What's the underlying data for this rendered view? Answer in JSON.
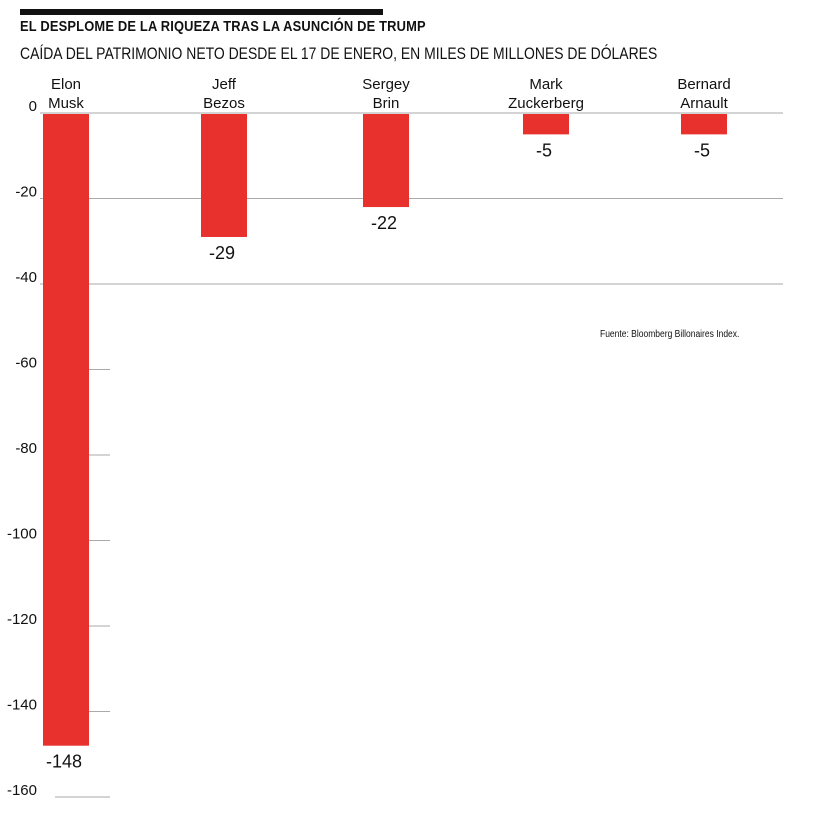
{
  "chart_data": {
    "type": "bar",
    "title": "EL DESPLOME DE LA RIQUEZA TRAS LA ASUNCIÓN DE TRUMP",
    "subtitle": "CAÍDA DEL PATRIMONIO NETO DESDE EL 17 DE ENERO, EN MILES DE MILLONES DE DÓLARES",
    "categories": [
      [
        "Elon",
        "Musk"
      ],
      [
        "Jeff",
        "Bezos"
      ],
      [
        "Sergey",
        "Brin"
      ],
      [
        "Mark",
        "Zuckerberg"
      ],
      [
        "Bernard",
        "Arnault"
      ]
    ],
    "values": [
      -148,
      -29,
      -22,
      -5,
      -5
    ],
    "value_labels": [
      "-148",
      "-29",
      "-22",
      "-5",
      "-5"
    ],
    "yticks": [
      0,
      -20,
      -40,
      -60,
      -80,
      -100,
      -120,
      -140,
      -160
    ],
    "ytick_labels": [
      "0",
      "-20",
      "-40",
      "-60",
      "-80",
      "-100",
      "-120",
      "-140",
      "-160"
    ],
    "ylim": [
      -160,
      0
    ],
    "xlabel": "",
    "ylabel": "",
    "bar_color": "#e8302d",
    "grid_color": "#aaaaaa",
    "source": "Fuente: Bloomberg Billonaires Index."
  }
}
